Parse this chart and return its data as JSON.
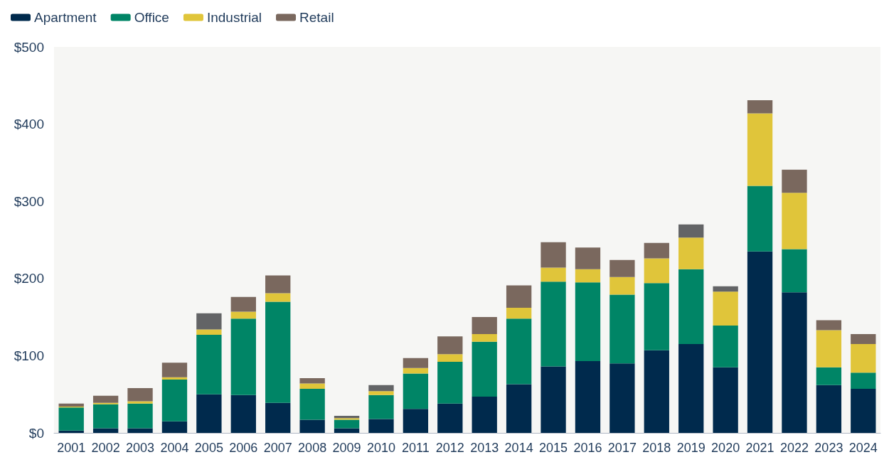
{
  "chart_data": {
    "type": "bar",
    "stacked": true,
    "categories": [
      "2001",
      "2002",
      "2003",
      "2004",
      "2005",
      "2006",
      "2007",
      "2008",
      "2009",
      "2010",
      "2011",
      "2012",
      "2013",
      "2014",
      "2015",
      "2016",
      "2017",
      "2018",
      "2019",
      "2020",
      "2021",
      "2022",
      "2023",
      "2024"
    ],
    "series": [
      {
        "name": "Apartment",
        "color": "#002a4d",
        "values": [
          3,
          6,
          6,
          15,
          50,
          49,
          39,
          17,
          6,
          18,
          31,
          38,
          47,
          63,
          86,
          93,
          90,
          107,
          115,
          85,
          235,
          182,
          62,
          57
        ]
      },
      {
        "name": "Office",
        "color": "#008566",
        "values": [
          30,
          31,
          32,
          54,
          77,
          99,
          131,
          40,
          11,
          31,
          46,
          54,
          71,
          85,
          110,
          102,
          89,
          87,
          97,
          54,
          85,
          56,
          23,
          21
        ]
      },
      {
        "name": "Industrial",
        "color": "#e0c53a",
        "values": [
          1,
          2,
          3,
          3,
          7,
          9,
          11,
          7,
          2,
          5,
          7,
          10,
          10,
          14,
          18,
          17,
          23,
          32,
          41,
          44,
          94,
          73,
          48,
          37
        ]
      },
      {
        "name": "Retail",
        "color": "#7a685e",
        "colors": [
          "#7a685e",
          "#7a685e",
          "#7a685e",
          "#7a685e",
          "#636466",
          "#7a685e",
          "#7a685e",
          "#7a685e",
          "#636466",
          "#636466",
          "#7a685e",
          "#7a685e",
          "#7a685e",
          "#7a685e",
          "#7a685e",
          "#7a685e",
          "#7a685e",
          "#7a685e",
          "#636466",
          "#636466",
          "#7a685e",
          "#7a685e",
          "#7a685e",
          "#7a685e"
        ],
        "values": [
          4,
          9,
          17,
          19,
          21,
          19,
          23,
          7,
          3,
          8,
          13,
          23,
          22,
          29,
          33,
          28,
          22,
          20,
          17,
          7,
          17,
          30,
          13,
          13
        ]
      }
    ],
    "ylim": [
      0,
      500
    ],
    "yticks": [
      {
        "value": 0,
        "label": "$0"
      },
      {
        "value": 100,
        "label": "$100"
      },
      {
        "value": 200,
        "label": "$200"
      },
      {
        "value": 300,
        "label": "$300"
      },
      {
        "value": 400,
        "label": "$400"
      },
      {
        "value": 500,
        "label": "$500"
      }
    ],
    "grid": false,
    "legend": "top left"
  }
}
